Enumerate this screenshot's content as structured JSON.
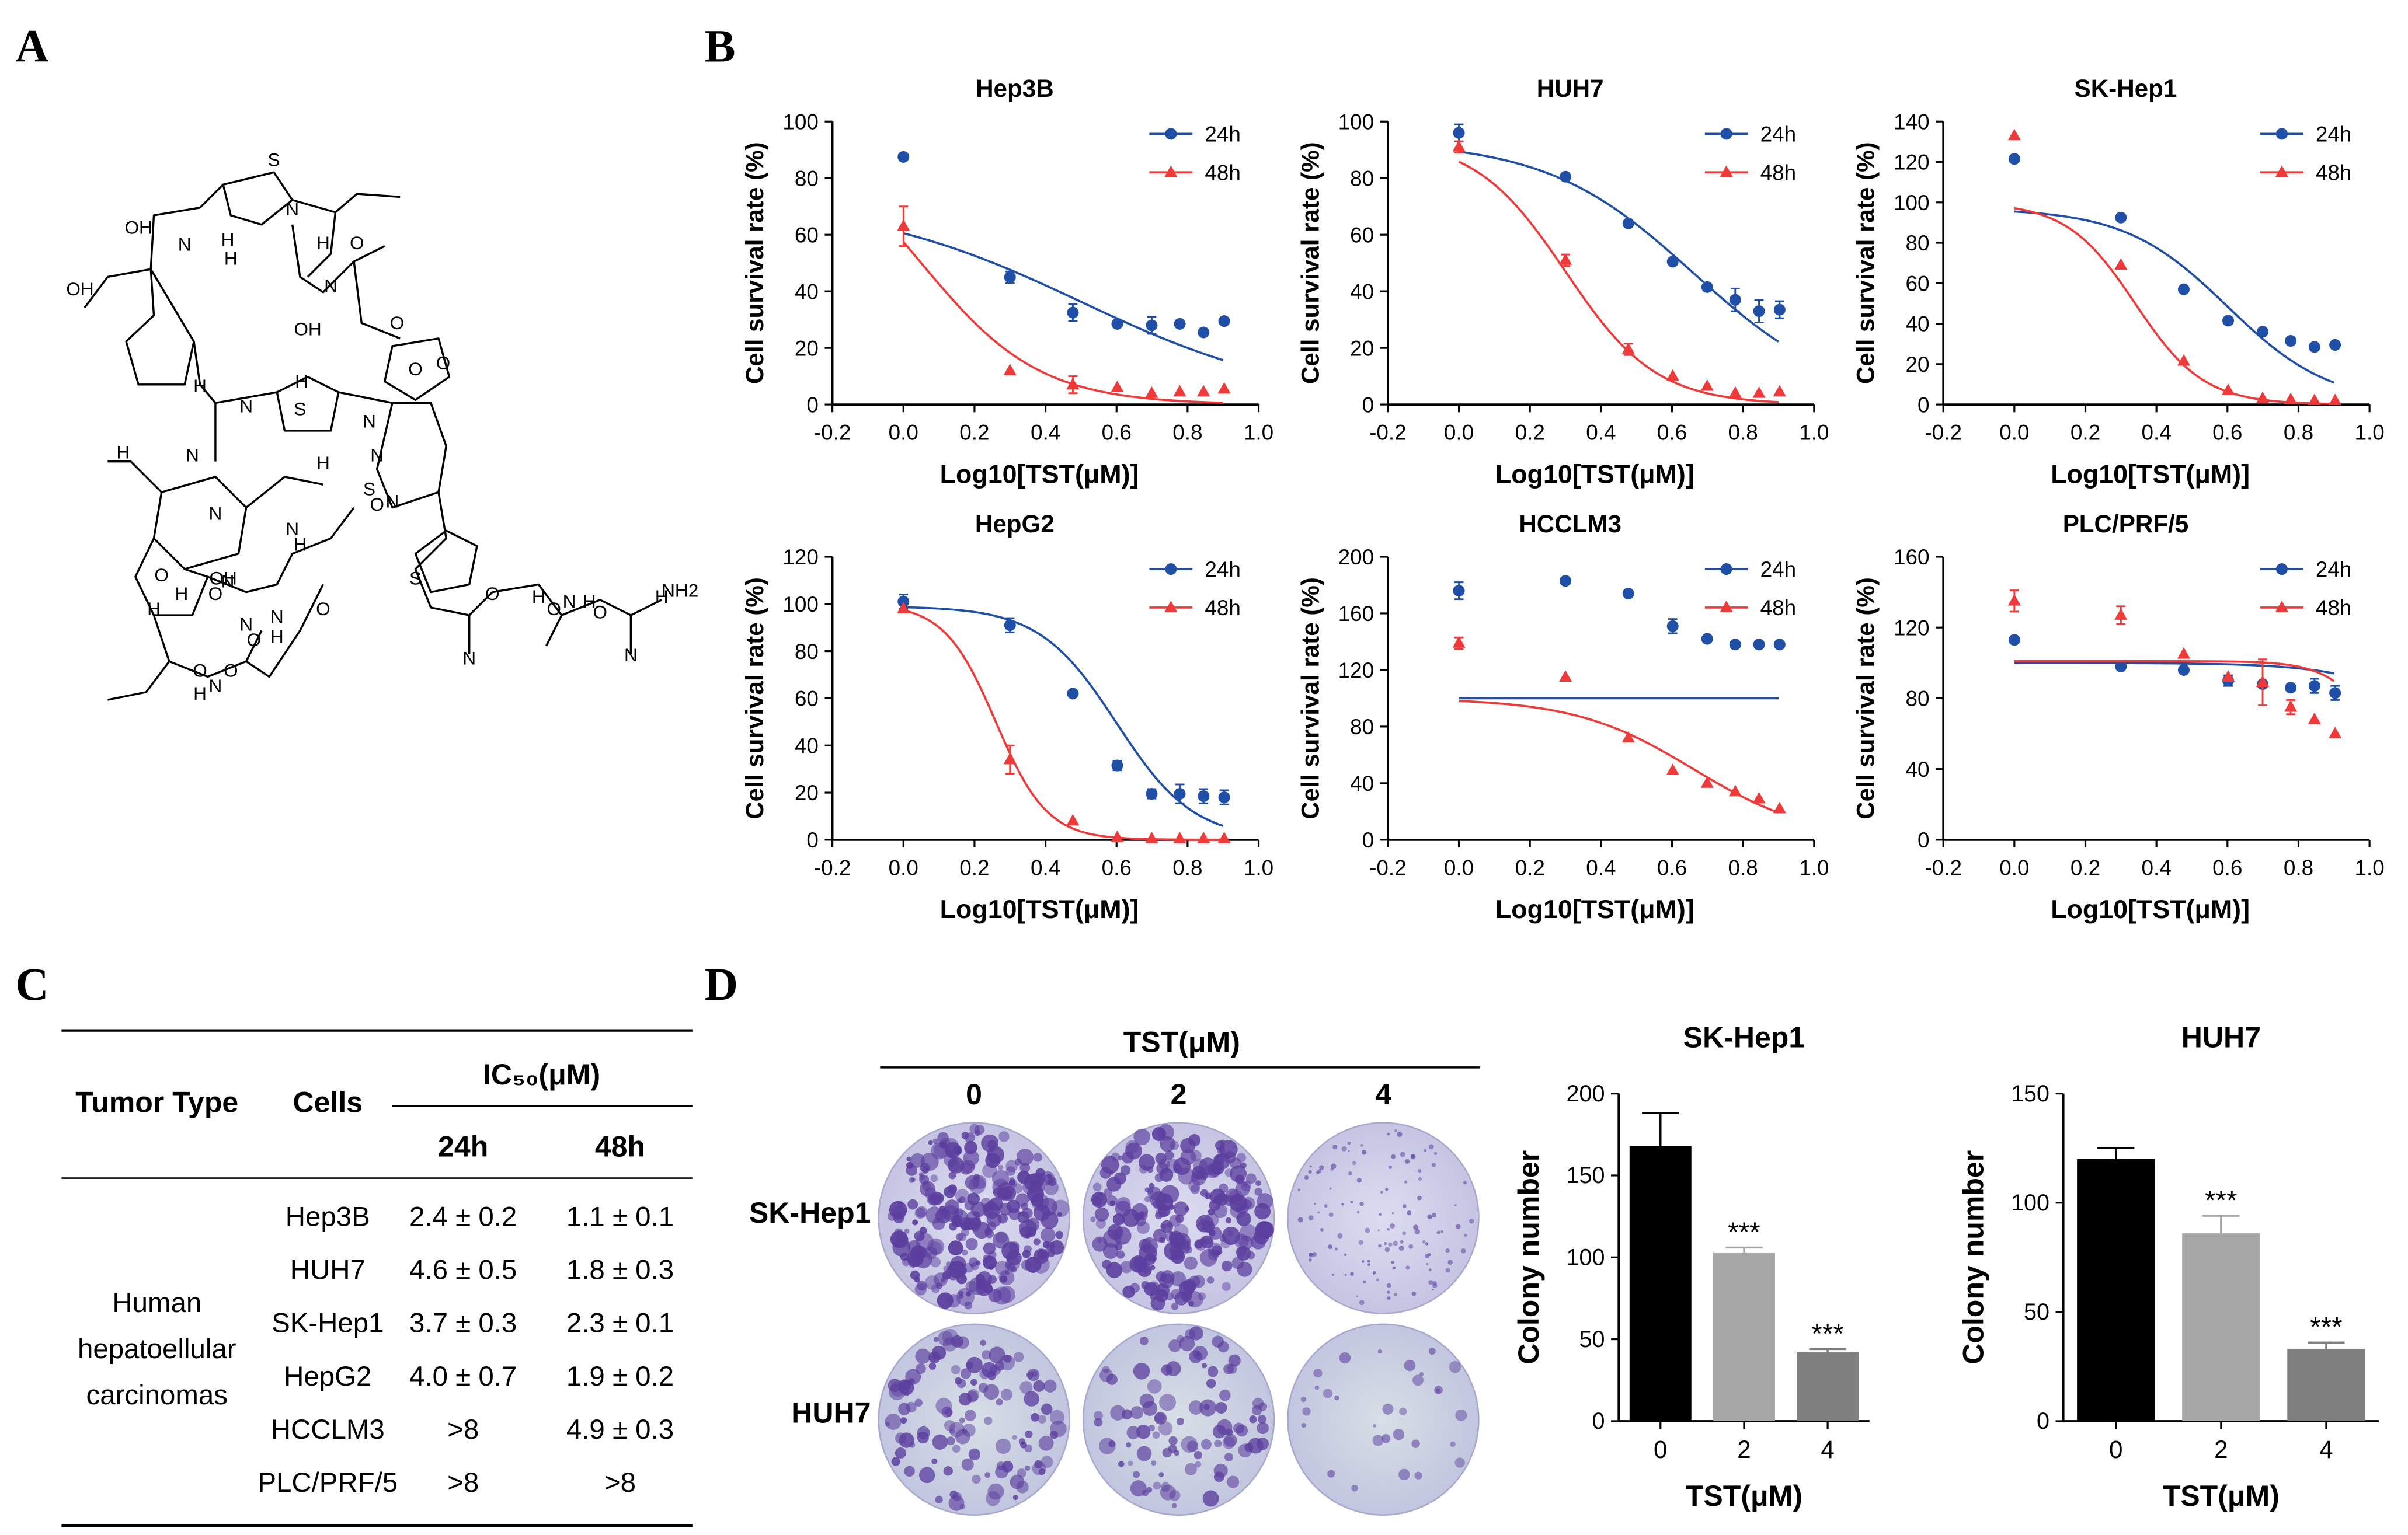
{
  "panels": {
    "A": {
      "label": "A",
      "structure_text": [
        "OH",
        "OH",
        "H",
        "S",
        "N",
        "N",
        "H",
        "H",
        "O",
        "N",
        "O",
        "OH",
        "H",
        "H",
        "N",
        "O",
        "S",
        "N",
        "O",
        "N",
        "H",
        "N",
        "S",
        "S",
        "N",
        "H",
        "N",
        "H",
        "N",
        "O",
        "O",
        "H",
        "N",
        "O",
        "N",
        "O",
        "O",
        "H",
        "OH",
        "N",
        "H",
        "O",
        "O",
        "H",
        "N",
        "O",
        "N",
        "H",
        "O",
        "N",
        "H",
        "O",
        "N",
        "H",
        "NH2"
      ]
    },
    "B": {
      "label": "B"
    },
    "C": {
      "label": "C",
      "table": {
        "col_tumor_type": "Tumor Type",
        "col_cells": "Cells",
        "col_ic50": "IC₅₀(μM)",
        "col_24h": "24h",
        "col_48h": "48h",
        "tumor_type_lines": [
          "Human",
          "hepatoellular",
          "carcinomas"
        ],
        "rows": [
          {
            "cell": "Hep3B",
            "v24": "2.4 ± 0.2",
            "v48": "1.1 ± 0.1"
          },
          {
            "cell": "HUH7",
            "v24": "4.6 ± 0.5",
            "v48": "1.8 ± 0.3"
          },
          {
            "cell": "SK-Hep1",
            "v24": "3.7 ± 0.3",
            "v48": "2.3 ± 0.1"
          },
          {
            "cell": "HepG2",
            "v24": "4.0 ± 0.7",
            "v48": "1.9 ± 0.2"
          },
          {
            "cell": "HCCLM3",
            "v24": ">8",
            "v48": "4.9 ± 0.3"
          },
          {
            "cell": "PLC/PRF/5",
            "v24": ">8",
            "v48": ">8"
          }
        ]
      }
    },
    "D": {
      "label": "D",
      "header": "TST(μM)",
      "concentrations": [
        "0",
        "2",
        "4"
      ],
      "rows": [
        "SK-Hep1",
        "HUH7"
      ]
    }
  },
  "colors": {
    "series_24h": "#1f4fa6",
    "series_48h": "#f03a3a",
    "bar_0": "#000000",
    "bar_2": "#a6a6a6",
    "bar_4": "#7f7f7f",
    "stain_dark": "#5b3e9e",
    "stain_plate": "#c8c8e6"
  },
  "chart_data": [
    {
      "type": "scatter",
      "title": "Hep3B",
      "xlabel": "Log10[TST(μM)]",
      "ylabel": "Cell survival rate (%)",
      "xlim": [
        -0.2,
        1.0
      ],
      "xticks": [
        "-0.2",
        "0.0",
        "0.2",
        "0.4",
        "0.6",
        "0.8",
        "1.0"
      ],
      "ylim": [
        0,
        100
      ],
      "yticks": [
        "0",
        "20",
        "40",
        "60",
        "80",
        "100"
      ],
      "series": [
        {
          "name": "24h",
          "x": [
            0,
            0.3,
            0.477,
            0.602,
            0.699,
            0.778,
            0.845,
            0.903
          ],
          "y": [
            87.5,
            45,
            32.5,
            28.5,
            28,
            28.5,
            25.5,
            29.5
          ],
          "err": [
            0,
            2,
            3,
            0,
            3,
            0,
            0,
            0
          ],
          "fit": [
            72.6,
            0.5,
            1.4
          ]
        },
        {
          "name": "48h",
          "x": [
            0,
            0.3,
            0.477,
            0.602,
            0.699,
            0.778,
            0.845,
            0.903
          ],
          "y": [
            63,
            12,
            7,
            6,
            4,
            4.5,
            4.5,
            5.5
          ],
          "err": [
            7,
            0,
            3,
            0,
            0,
            0,
            0,
            0
          ],
          "fit": [
            100,
            0.05,
            2.6
          ]
        }
      ],
      "legend": [
        "24h",
        "48h"
      ]
    },
    {
      "type": "scatter",
      "title": "HUH7",
      "xlabel": "Log10[TST(μM)]",
      "ylabel": "Cell survival rate (%)",
      "xlim": [
        -0.2,
        1.0
      ],
      "xticks": [
        "-0.2",
        "0.0",
        "0.2",
        "0.4",
        "0.6",
        "0.8",
        "1.0"
      ],
      "ylim": [
        0,
        100
      ],
      "yticks": [
        "0",
        "20",
        "40",
        "60",
        "80",
        "100"
      ],
      "series": [
        {
          "name": "24h",
          "x": [
            0,
            0.3,
            0.477,
            0.602,
            0.699,
            0.778,
            0.845,
            0.903
          ],
          "y": [
            96,
            80.5,
            64,
            50.5,
            41.5,
            37,
            33,
            33.5
          ],
          "err": [
            3,
            0,
            0,
            0,
            0,
            4,
            4,
            3
          ],
          "fit": [
            93,
            0.66,
            2.1
          ]
        },
        {
          "name": "48h",
          "x": [
            0,
            0.3,
            0.477,
            0.602,
            0.699,
            0.778,
            0.845,
            0.903
          ],
          "y": [
            91,
            51,
            19.5,
            10,
            6.5,
            4,
            4,
            4.5
          ],
          "err": [
            2,
            2,
            2,
            0,
            0,
            0,
            0,
            0
          ],
          "fit": [
            94,
            0.3,
            3.4
          ]
        }
      ],
      "legend": [
        "24h",
        "48h"
      ]
    },
    {
      "type": "scatter",
      "title": "SK-Hep1",
      "xlabel": "Log10[TST(μM)]",
      "ylabel": "Cell survival rate (%)",
      "xlim": [
        -0.2,
        1.0
      ],
      "xticks": [
        "-0.2",
        "0.0",
        "0.2",
        "0.4",
        "0.6",
        "0.8",
        "1.0"
      ],
      "ylim": [
        0,
        140
      ],
      "yticks": [
        "0",
        "20",
        "40",
        "60",
        "80",
        "100",
        "120",
        "140"
      ],
      "series": [
        {
          "name": "24h",
          "x": [
            0,
            0.3,
            0.477,
            0.602,
            0.699,
            0.778,
            0.845,
            0.903
          ],
          "y": [
            121.5,
            92.5,
            57,
            41.5,
            36,
            31.5,
            28.5,
            29.5
          ],
          "err": [
            0,
            0,
            0,
            0,
            0,
            0,
            0,
            0
          ],
          "fit": [
            97,
            0.6,
            3
          ]
        },
        {
          "name": "48h",
          "x": [
            0,
            0.3,
            0.477,
            0.602,
            0.699,
            0.778,
            0.845,
            0.903
          ],
          "y": [
            133,
            69,
            21.5,
            7,
            3,
            2.5,
            2,
            2
          ],
          "err": [
            0,
            0,
            0,
            0,
            0,
            0,
            0,
            0
          ],
          "fit": [
            100,
            0.34,
            4.5
          ]
        }
      ],
      "legend": [
        "24h",
        "48h"
      ]
    },
    {
      "type": "scatter",
      "title": "HepG2",
      "xlabel": "Log10[TST(μM)]",
      "ylabel": "Cell survival rate (%)",
      "xlim": [
        -0.2,
        1.0
      ],
      "xticks": [
        "-0.2",
        "0.0",
        "0.2",
        "0.4",
        "0.6",
        "0.8",
        "1.0"
      ],
      "ylim": [
        0,
        120
      ],
      "yticks": [
        "0",
        "20",
        "40",
        "60",
        "80",
        "100",
        "120"
      ],
      "series": [
        {
          "name": "24h",
          "x": [
            0,
            0.3,
            0.477,
            0.602,
            0.699,
            0.778,
            0.845,
            0.903
          ],
          "y": [
            101,
            91,
            62,
            31.5,
            19.5,
            19.5,
            18.5,
            18
          ],
          "err": [
            3,
            3,
            0,
            2,
            2,
            4,
            3,
            3
          ],
          "fit": [
            99,
            0.6,
            4
          ]
        },
        {
          "name": "48h",
          "x": [
            0,
            0.3,
            0.477,
            0.602,
            0.699,
            0.778,
            0.845,
            0.903
          ],
          "y": [
            98,
            34,
            8,
            1,
            0.5,
            0.5,
            0.5,
            0.5
          ],
          "err": [
            0,
            6,
            0,
            0,
            0,
            0,
            0,
            0
          ],
          "fit": [
            100,
            0.26,
            6
          ]
        }
      ],
      "legend": [
        "24h",
        "48h"
      ]
    },
    {
      "type": "scatter",
      "title": "HCCLM3",
      "xlabel": "Log10[TST(μM)]",
      "ylabel": "Cell survival rate (%)",
      "xlim": [
        -0.2,
        1.0
      ],
      "xticks": [
        "-0.2",
        "0.0",
        "0.2",
        "0.4",
        "0.6",
        "0.8",
        "1.0"
      ],
      "ylim": [
        0,
        200
      ],
      "yticks": [
        "0",
        "40",
        "80",
        "120",
        "160",
        "200"
      ],
      "series": [
        {
          "name": "24h",
          "x": [
            0,
            0.3,
            0.477,
            0.602,
            0.699,
            0.778,
            0.845,
            0.903
          ],
          "y": [
            176,
            183,
            174,
            151,
            142,
            138,
            138,
            138
          ],
          "err": [
            6,
            0,
            0,
            5,
            0,
            0,
            0,
            0
          ],
          "fit": [
            100,
            50,
            1
          ]
        },
        {
          "name": "48h",
          "x": [
            0,
            0.3,
            0.477,
            0.602,
            0.699,
            0.778,
            0.845,
            0.903
          ],
          "y": [
            139,
            115,
            72,
            49,
            40,
            34,
            29,
            22
          ],
          "err": [
            4,
            0,
            0,
            0,
            0,
            0,
            0,
            0
          ],
          "fit": [
            100,
            0.66,
            2.6
          ]
        }
      ],
      "legend": [
        "24h",
        "48h"
      ]
    },
    {
      "type": "scatter",
      "title": "PLC/PRF/5",
      "xlabel": "Log10[TST(μM)]",
      "ylabel": "Cell survival rate (%)",
      "xlim": [
        -0.2,
        1.0
      ],
      "xticks": [
        "-0.2",
        "0.0",
        "0.2",
        "0.4",
        "0.6",
        "0.8",
        "1.0"
      ],
      "ylim": [
        0,
        160
      ],
      "yticks": [
        "0",
        "40",
        "80",
        "120",
        "160"
      ],
      "series": [
        {
          "name": "24h",
          "x": [
            0,
            0.3,
            0.477,
            0.602,
            0.699,
            0.778,
            0.845,
            0.903
          ],
          "y": [
            113,
            98,
            96,
            90,
            88,
            86,
            87,
            83
          ],
          "err": [
            0,
            0,
            0,
            3,
            0,
            0,
            4,
            4
          ],
          "fit": [
            100,
            1.3,
            3
          ]
        },
        {
          "name": "48h",
          "x": [
            0,
            0.3,
            0.477,
            0.602,
            0.699,
            0.778,
            0.845,
            0.903
          ],
          "y": [
            135,
            127,
            105,
            92,
            89,
            75,
            68,
            60
          ],
          "err": [
            6,
            5,
            0,
            0,
            13,
            4,
            0,
            0
          ],
          "fit": [
            101,
            1.05,
            6
          ]
        }
      ],
      "legend": [
        "24h",
        "48h"
      ]
    },
    {
      "type": "bar",
      "title": "SK-Hep1",
      "xlabel": "TST(μM)",
      "ylabel": "Colony number",
      "categories": [
        "0",
        "2",
        "4"
      ],
      "values": [
        168,
        103,
        42
      ],
      "err": [
        20,
        3,
        2
      ],
      "annotations": [
        "",
        "***",
        "***"
      ],
      "ylim": [
        0,
        200
      ],
      "yticks": [
        "0",
        "50",
        "100",
        "150",
        "200"
      ]
    },
    {
      "type": "bar",
      "title": "HUH7",
      "xlabel": "TST(μM)",
      "ylabel": "Colony number",
      "categories": [
        "0",
        "2",
        "4"
      ],
      "values": [
        120,
        86,
        33
      ],
      "err": [
        5,
        8,
        3
      ],
      "annotations": [
        "",
        "***",
        "***"
      ],
      "ylim": [
        0,
        150
      ],
      "yticks": [
        "0",
        "50",
        "100",
        "150"
      ]
    }
  ]
}
